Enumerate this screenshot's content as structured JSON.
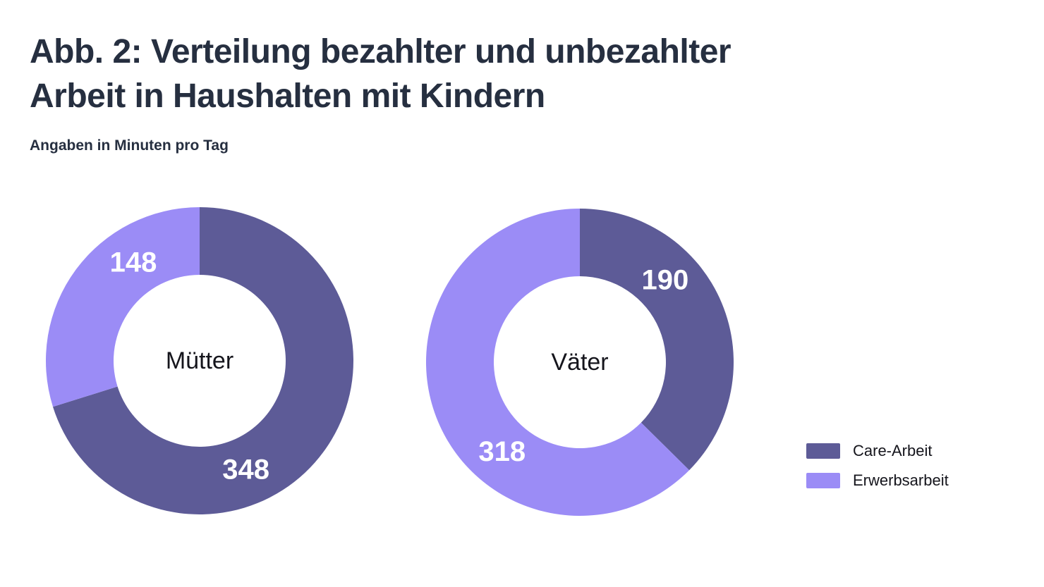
{
  "header": {
    "title_line1": "Abb. 2: Verteilung bezahlter und unbezahlter",
    "title_line2": "Arbeit in Haushalten mit Kindern",
    "subtitle": "Angaben in Minuten pro Tag"
  },
  "colors": {
    "care_arbeit": "#5d5b97",
    "erwerbsarbeit": "#9b8cf6",
    "title_text": "#262f40",
    "label_text": "#15151c",
    "value_text": "#ffffff",
    "background": "#ffffff"
  },
  "chart_data": {
    "type": "pie",
    "variant": "donut",
    "title": "Abb. 2: Verteilung bezahlter und unbezahlter Arbeit in Haushalten mit Kindern",
    "subtitle": "Angaben in Minuten pro Tag",
    "unit": "Minuten pro Tag",
    "legend_position": "right",
    "legend": [
      {
        "label": "Care-Arbeit",
        "color": "#5d5b97"
      },
      {
        "label": "Erwerbsarbeit",
        "color": "#9b8cf6"
      }
    ],
    "start_angle_deg": 0,
    "direction": "clockwise",
    "donuts": [
      {
        "name": "Mütter",
        "segments": [
          {
            "label": "Care-Arbeit",
            "value": 348,
            "color": "#5d5b97",
            "label_angle_deg": 157
          },
          {
            "label": "Erwerbsarbeit",
            "value": 148,
            "color": "#9b8cf6",
            "label_angle_deg": 326
          }
        ]
      },
      {
        "name": "Väter",
        "segments": [
          {
            "label": "Care-Arbeit",
            "value": 190,
            "color": "#5d5b97",
            "label_angle_deg": 46
          },
          {
            "label": "Erwerbsarbeit",
            "value": 318,
            "color": "#9b8cf6",
            "label_angle_deg": 221
          }
        ]
      }
    ]
  }
}
